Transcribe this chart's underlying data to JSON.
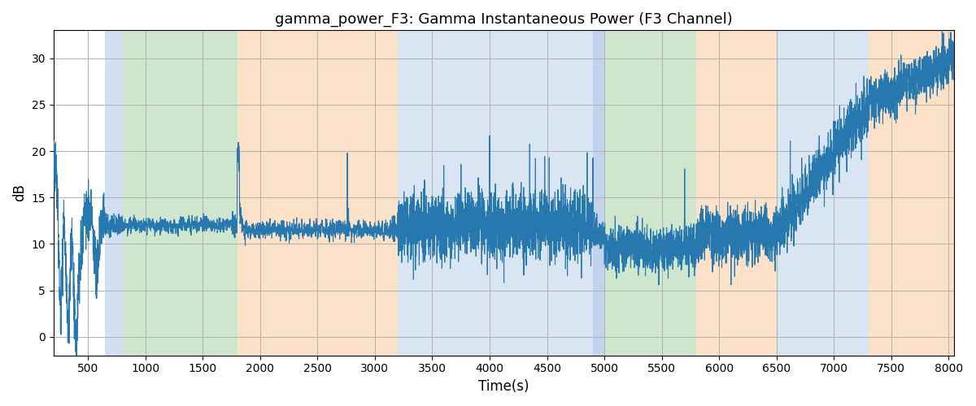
{
  "title": "gamma_power_F3: Gamma Instantaneous Power (F3 Channel)",
  "xlabel": "Time(s)",
  "ylabel": "dB",
  "xlim": [
    200,
    8050
  ],
  "ylim": [
    -2,
    33
  ],
  "line_color": "#2878b0",
  "line_width": 0.8,
  "background_color": "#ffffff",
  "grid_color": "#b0b0b0",
  "bands": [
    {
      "xmin": 650,
      "xmax": 800,
      "color": "#aec6e8",
      "alpha": 0.55
    },
    {
      "xmin": 800,
      "xmax": 1800,
      "color": "#90c990",
      "alpha": 0.45
    },
    {
      "xmin": 1800,
      "xmax": 3200,
      "color": "#f7c99a",
      "alpha": 0.55
    },
    {
      "xmin": 3200,
      "xmax": 4900,
      "color": "#aec6e8",
      "alpha": 0.45
    },
    {
      "xmin": 4900,
      "xmax": 5000,
      "color": "#aec6e8",
      "alpha": 0.75
    },
    {
      "xmin": 5000,
      "xmax": 5800,
      "color": "#90c990",
      "alpha": 0.45
    },
    {
      "xmin": 5800,
      "xmax": 6500,
      "color": "#f7c99a",
      "alpha": 0.55
    },
    {
      "xmin": 6500,
      "xmax": 7300,
      "color": "#aec6e8",
      "alpha": 0.45
    },
    {
      "xmin": 7300,
      "xmax": 8050,
      "color": "#f7c99a",
      "alpha": 0.55
    }
  ],
  "xticks": [
    500,
    1000,
    1500,
    2000,
    2500,
    3000,
    3500,
    4000,
    4500,
    5000,
    5500,
    6000,
    6500,
    7000,
    7500,
    8000
  ],
  "yticks": [
    0,
    5,
    10,
    15,
    20,
    25,
    30
  ]
}
